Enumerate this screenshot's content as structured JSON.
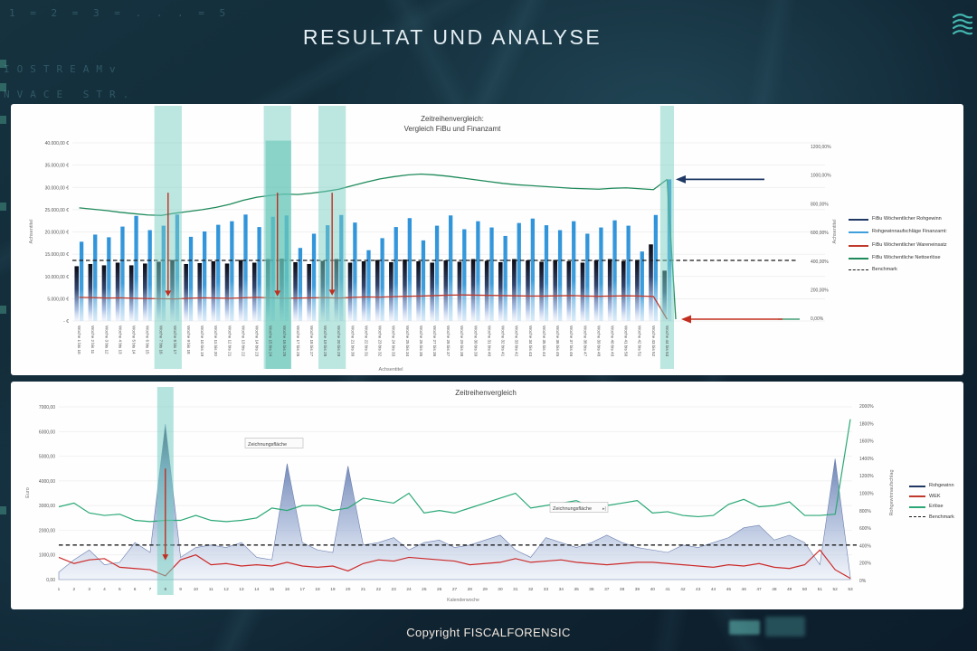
{
  "slide": {
    "title": "RESULTAT UND ANALYSE",
    "footer": "Copyright FISCALFORENSIC"
  },
  "background": {
    "codes": [
      "1 = 2 = 3 = . . . = 5",
      "IOSTREAMv",
      "NVACE STR."
    ]
  },
  "colors": {
    "accent_teal": "#49c5bc",
    "highlight_band": "#79cec2",
    "bar_dark": "#1f3864",
    "bar_light": "#3f9fdd",
    "line_red": "#c0392b",
    "line_green": "#1e8a5a",
    "benchmark": "#1a1a1a"
  },
  "chart_data": [
    {
      "type": "bar",
      "title_line1": "Zeitreihenvergleich:",
      "title_line2": "Vergleich FiBu und Finanzamt",
      "x_label": "Achsentitel",
      "y_left": {
        "label": "Achsentitel",
        "max": 40000,
        "ticks": [
          "40.000,00 €",
          "35.000,00 €",
          "30.000,00 €",
          "25.000,00 €",
          "20.000,00 €",
          "15.000,00 €",
          "10.000,00 €",
          "5.000,00 €",
          "- €"
        ]
      },
      "y_right": {
        "label": "Achsentitel",
        "ticks": [
          "1200,00%",
          "1000,00%",
          "800,00%",
          "600,00%",
          "400,00%",
          "200,00%",
          "0,00%"
        ]
      },
      "categories": [
        "Woche 1 bis 10",
        "Woche 2 bis 11",
        "Woche 3 bis 12",
        "Woche 4 bis 13",
        "Woche 5 bis 14",
        "Woche 6 bis 15",
        "Woche 7 bis 16",
        "Woche 8 bis 17",
        "Woche 9 bis 18",
        "Woche 10 bis 19",
        "Woche 11 bis 20",
        "Woche 12 bis 21",
        "Woche 13 bis 22",
        "Woche 14 bis 23",
        "Woche 15 bis 24",
        "Woche 16 bis 25",
        "Woche 17 bis 26",
        "Woche 18 bis 27",
        "Woche 19 bis 28",
        "Woche 20 bis 29",
        "Woche 21 bis 30",
        "Woche 22 bis 31",
        "Woche 23 bis 32",
        "Woche 24 bis 33",
        "Woche 25 bis 34",
        "Woche 26 bis 35",
        "Woche 27 bis 36",
        "Woche 28 bis 37",
        "Woche 29 bis 38",
        "Woche 30 bis 39",
        "Woche 31 bis 40",
        "Woche 32 bis 41",
        "Woche 33 bis 42",
        "Woche 34 bis 43",
        "Woche 35 bis 44",
        "Woche 36 bis 45",
        "Woche 37 bis 46",
        "Woche 38 bis 47",
        "Woche 39 bis 48",
        "Woche 40 bis 49",
        "Woche 41 bis 50",
        "Woche 42 bis 51",
        "Woche 43 bis 52",
        "Woche 44 bis 53"
      ],
      "series": [
        {
          "name": "FiBu Wöchentlicher Rohgewinn",
          "kind": "bar-dark",
          "values": [
            12300,
            12800,
            12500,
            13100,
            12500,
            12900,
            13300,
            13700,
            12800,
            13000,
            13400,
            12900,
            13700,
            13100,
            13900,
            14000,
            13200,
            12800,
            13500,
            13900,
            13100,
            13400,
            13700,
            13200,
            13800,
            13400,
            13100,
            13600,
            13300,
            13900,
            13500,
            13200,
            13900,
            13600,
            13300,
            13700,
            13400,
            13100,
            13600,
            13900,
            13400,
            13700,
            17200,
            11300
          ]
        },
        {
          "name": "Rohgewinnaufschläge Finanzamt:",
          "kind": "bar-light",
          "values": [
            17800,
            19400,
            18800,
            21200,
            23600,
            20400,
            21400,
            23900,
            18900,
            20100,
            21600,
            22400,
            23900,
            21100,
            23400,
            23700,
            16400,
            19600,
            21500,
            23800,
            22100,
            15900,
            18600,
            21100,
            23100,
            18100,
            21400,
            23700,
            20600,
            22400,
            21000,
            19100,
            22000,
            23000,
            21500,
            20400,
            22400,
            19600,
            21000,
            22600,
            21400,
            15600,
            23800,
            31800
          ]
        },
        {
          "name": "FiBu Wöchentlicher Wareneinsatz",
          "kind": "line",
          "color": "#c0392b",
          "values": [
            5300,
            5250,
            5150,
            5200,
            5100,
            5050,
            5000,
            4950,
            5100,
            5200,
            5150,
            5100,
            5200,
            5300,
            5200,
            5100,
            5150,
            5200,
            5250,
            5150,
            5300,
            5400,
            5350,
            5450,
            5550,
            5600,
            5700,
            5800,
            5850,
            5800,
            5750,
            5700,
            5650,
            5600,
            5600,
            5650,
            5700,
            5600,
            5550,
            5600,
            5650,
            5600,
            5500,
            400
          ]
        },
        {
          "name": "FiBu Wöchentliche Nettoerlöse",
          "kind": "line",
          "color": "#1e8a5a",
          "values": [
            25400,
            25100,
            24800,
            24400,
            24100,
            23800,
            23700,
            24200,
            24600,
            25000,
            25500,
            26200,
            27100,
            27800,
            28200,
            28500,
            28400,
            28700,
            29100,
            29600,
            30400,
            31200,
            31900,
            32400,
            32800,
            33000,
            32800,
            32500,
            32100,
            31700,
            31300,
            30900,
            30600,
            30400,
            30200,
            30000,
            29800,
            29700,
            29600,
            29800,
            29900,
            29700,
            29500,
            31800
          ]
        },
        {
          "name": "Benchmark",
          "kind": "dashed",
          "value": 13600
        }
      ],
      "legend": [
        {
          "label": "FiBu Wöchentlicher Rohgewinn",
          "color": "#1f3864",
          "style": "line"
        },
        {
          "label": "Rohgewinnaufschläge Finanzamt:",
          "color": "#3f9fdd",
          "style": "line"
        },
        {
          "label": "FiBu Wöchentlicher Wareneinsatz",
          "color": "#c0392b",
          "style": "line",
          "gap": true
        },
        {
          "label": "FiBu Wöchentliche Nettoerlöse",
          "color": "#1e8a5a",
          "style": "line"
        },
        {
          "label": "Benchmark",
          "color": "#1a1a1a",
          "style": "dash"
        }
      ],
      "highlights": [
        {
          "from_week": 7,
          "to_week": 8
        },
        {
          "from_week": 15,
          "to_week": 16,
          "inner_bar_value": 40500
        },
        {
          "from_week": 19,
          "to_week": 20
        },
        {
          "from_week": 44,
          "to_week": 44
        }
      ],
      "annotations": [
        {
          "type": "arrow-down",
          "week": 7.5,
          "value_from": 28800,
          "value_to": 5600,
          "color": "#c22e1f"
        },
        {
          "type": "arrow-down",
          "week": 15.5,
          "value_from": 28800,
          "value_to": 5600,
          "color": "#c22e1f"
        },
        {
          "type": "arrow-down",
          "week": 19.5,
          "value_from": 28800,
          "value_to": 5800,
          "color": "#c22e1f"
        },
        {
          "type": "arrow-left",
          "y_value": 31800,
          "x_from": 833,
          "x_to": 735,
          "color": "#1f3864"
        },
        {
          "type": "arrow-left",
          "y_value": 400,
          "x_from": 853,
          "x_to": 741,
          "color": "#c22e1f"
        }
      ]
    },
    {
      "type": "area",
      "title": "Zeitreihenvergleich",
      "x_label": "Kalenderwoche",
      "y_left": {
        "label": "Euro",
        "max": 7000,
        "ticks": [
          "7000,00",
          "6000,00",
          "5000,00",
          "4000,00",
          "3000,00",
          "2000,00",
          "1000,00",
          "0,00"
        ]
      },
      "y_right": {
        "label": "Rohgewinnaufschlag",
        "ticks": [
          "2000%",
          "1800%",
          "1600%",
          "1400%",
          "1200%",
          "1000%",
          "800%",
          "600%",
          "400%",
          "200%",
          "0%"
        ]
      },
      "x": [
        1,
        2,
        3,
        4,
        5,
        6,
        7,
        8,
        9,
        10,
        11,
        12,
        13,
        14,
        15,
        16,
        17,
        18,
        19,
        20,
        21,
        22,
        23,
        24,
        25,
        26,
        27,
        28,
        29,
        30,
        31,
        32,
        33,
        34,
        35,
        36,
        37,
        38,
        39,
        40,
        41,
        42,
        43,
        44,
        45,
        46,
        47,
        48,
        49,
        50,
        51,
        52,
        53
      ],
      "series": [
        {
          "name": "Rohgewinn",
          "kind": "area",
          "values": [
            300,
            800,
            1200,
            600,
            700,
            1500,
            1100,
            6300,
            900,
            1300,
            1400,
            1300,
            1500,
            900,
            800,
            4700,
            1500,
            1200,
            1100,
            4600,
            1400,
            1500,
            1700,
            1200,
            1500,
            1600,
            1300,
            1400,
            1600,
            1800,
            1200,
            900,
            1700,
            1500,
            1300,
            1500,
            1800,
            1500,
            1300,
            1200,
            1100,
            1400,
            1300,
            1500,
            1700,
            2100,
            2200,
            1600,
            1800,
            1500,
            600,
            4900,
            100
          ]
        },
        {
          "name": "WEK",
          "kind": "line",
          "color": "#cc2a2a",
          "values": [
            900,
            650,
            800,
            850,
            500,
            450,
            400,
            150,
            800,
            1000,
            600,
            650,
            550,
            600,
            550,
            700,
            550,
            500,
            550,
            350,
            650,
            800,
            750,
            900,
            850,
            800,
            750,
            600,
            650,
            700,
            850,
            700,
            750,
            800,
            700,
            650,
            600,
            650,
            700,
            700,
            650,
            600,
            550,
            500,
            600,
            550,
            650,
            500,
            450,
            600,
            1200,
            400,
            50
          ]
        },
        {
          "name": "Erlöse",
          "kind": "line",
          "color": "#2aa876",
          "values": [
            2950,
            3100,
            2700,
            2600,
            2650,
            2400,
            2350,
            2400,
            2400,
            2600,
            2400,
            2350,
            2400,
            2500,
            2900,
            2800,
            3000,
            3000,
            2800,
            2900,
            3300,
            3200,
            3100,
            3500,
            2700,
            2800,
            2700,
            2900,
            3100,
            3300,
            3500,
            2900,
            3000,
            3100,
            3200,
            2950,
            3000,
            3100,
            3200,
            2700,
            2750,
            2600,
            2550,
            2600,
            3050,
            3250,
            2950,
            3000,
            3150,
            2600,
            2600,
            2650,
            6500
          ]
        },
        {
          "name": "Benchmark",
          "kind": "dashed",
          "value": 1400
        }
      ],
      "legend": [
        {
          "label": "Rohgewinn",
          "color": "#1f3864",
          "style": "line"
        },
        {
          "label": "WEK",
          "color": "#c0392b",
          "style": "line"
        },
        {
          "label": "Erlöse",
          "color": "#2aa876",
          "style": "line"
        },
        {
          "label": "Benchmark",
          "color": "#1a1a1a",
          "style": "dash"
        }
      ],
      "highlights": [
        {
          "from_week": 8,
          "to_week": 8
        }
      ],
      "annotations": [
        {
          "type": "arrow-down",
          "week": 8,
          "value_from": 4500,
          "value_to": 800,
          "color": "#c22e1f"
        }
      ],
      "tooltips": [
        "Zeichnungsfläche",
        "Zeichnungsfläche"
      ]
    }
  ]
}
